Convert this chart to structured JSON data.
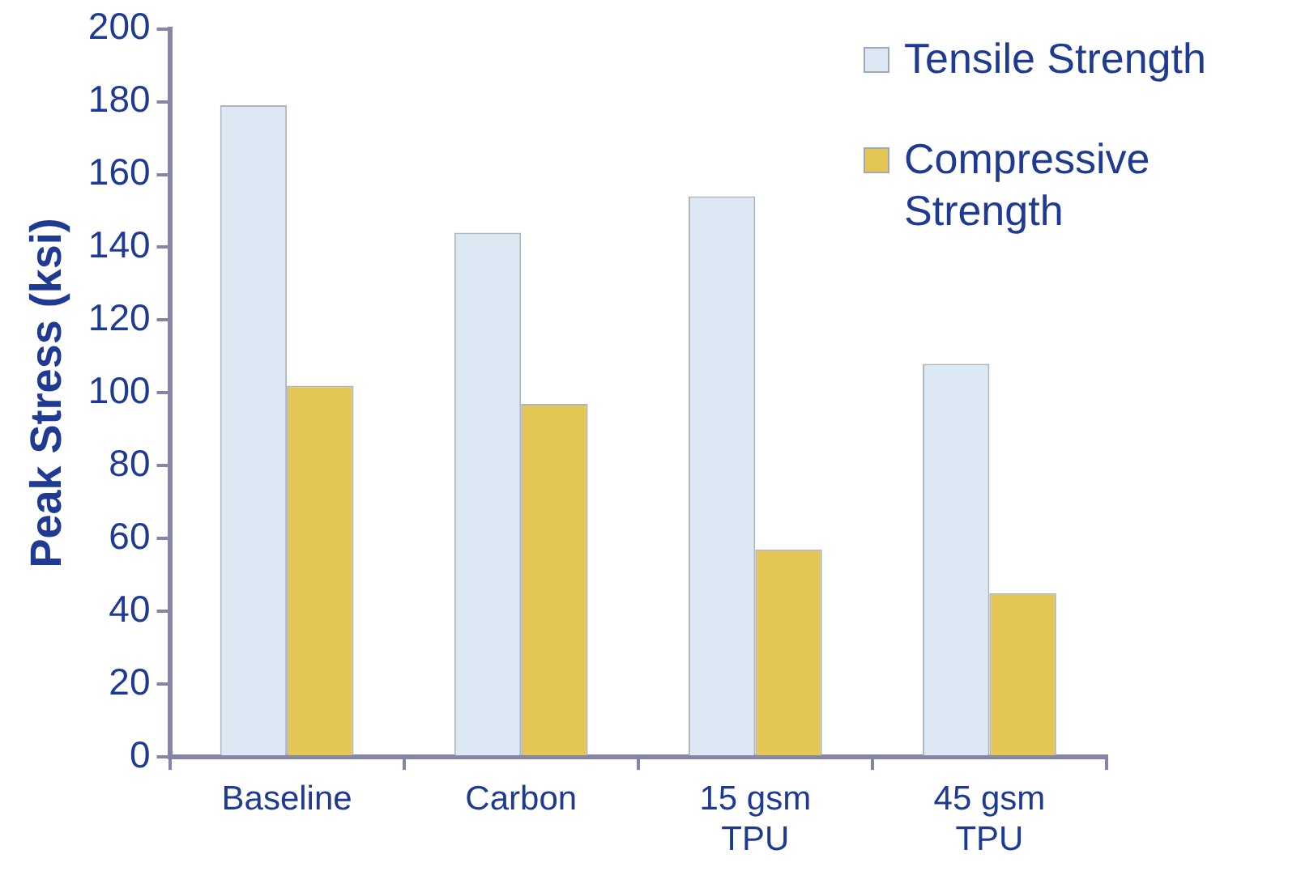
{
  "chart_data": {
    "type": "bar",
    "ylabel": "Peak Stress (ksi)",
    "categories": [
      "Baseline",
      "Carbon",
      "15 gsm\nTPU",
      "45 gsm\nTPU"
    ],
    "series": [
      {
        "name": "Tensile Strength",
        "color": "#dce9f5",
        "values": [
          179,
          144,
          154,
          108
        ]
      },
      {
        "name": "Compressive Strength",
        "color": "#e4c655",
        "values": [
          102,
          97,
          57,
          45
        ]
      }
    ],
    "ylim": [
      0,
      200
    ],
    "yticks": [
      0,
      20,
      40,
      60,
      80,
      100,
      120,
      140,
      160,
      180,
      200
    ],
    "grid": false,
    "legend": "top right"
  }
}
